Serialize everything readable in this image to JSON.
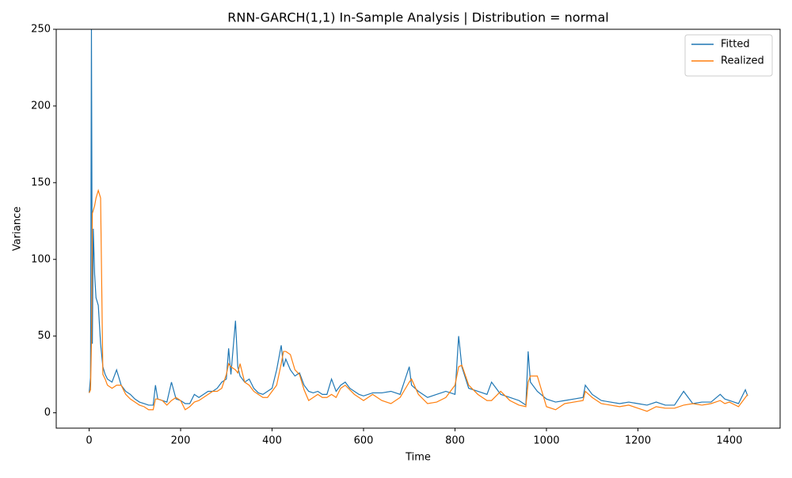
{
  "chart_data": {
    "type": "line",
    "title": "RNN-GARCH(1,1) In-Sample Analysis | Distribution = normal",
    "x_label": "Time",
    "y_label": "Variance",
    "x": [
      0,
      3,
      5,
      7,
      9,
      12,
      15,
      20,
      25,
      30,
      35,
      40,
      50,
      60,
      70,
      80,
      90,
      100,
      110,
      120,
      130,
      140,
      145,
      150,
      160,
      170,
      180,
      190,
      200,
      210,
      220,
      230,
      240,
      250,
      260,
      270,
      280,
      290,
      300,
      305,
      310,
      320,
      325,
      330,
      340,
      350,
      360,
      370,
      380,
      390,
      400,
      410,
      420,
      425,
      430,
      440,
      450,
      460,
      470,
      480,
      490,
      500,
      510,
      520,
      530,
      540,
      550,
      560,
      570,
      580,
      590,
      600,
      620,
      640,
      660,
      680,
      700,
      705,
      720,
      740,
      760,
      780,
      800,
      808,
      815,
      830,
      850,
      870,
      880,
      900,
      920,
      940,
      955,
      960,
      965,
      980,
      1000,
      1020,
      1040,
      1060,
      1080,
      1085,
      1100,
      1120,
      1140,
      1160,
      1180,
      1200,
      1220,
      1240,
      1260,
      1280,
      1300,
      1320,
      1340,
      1360,
      1380,
      1390,
      1400,
      1420,
      1435,
      1440
    ],
    "series": [
      {
        "name": "Fitted",
        "color": "#1f77b4",
        "values": [
          13,
          23,
          250,
          45,
          120,
          90,
          75,
          70,
          45,
          30,
          25,
          22,
          20,
          28,
          18,
          14,
          12,
          9,
          7,
          6,
          5,
          5,
          18,
          9,
          8,
          7,
          20,
          9,
          8,
          6,
          6,
          12,
          10,
          12,
          14,
          14,
          16,
          20,
          22,
          42,
          25,
          60,
          30,
          24,
          20,
          22,
          16,
          13,
          12,
          14,
          16,
          28,
          44,
          30,
          35,
          28,
          24,
          26,
          18,
          14,
          13,
          14,
          12,
          12,
          22,
          14,
          18,
          20,
          16,
          14,
          12,
          11,
          13,
          13,
          14,
          12,
          30,
          18,
          14,
          10,
          12,
          14,
          12,
          50,
          30,
          16,
          14,
          12,
          20,
          12,
          10,
          8,
          5,
          40,
          20,
          14,
          9,
          7,
          8,
          9,
          10,
          18,
          12,
          8,
          7,
          6,
          7,
          6,
          5,
          7,
          5,
          5,
          14,
          6,
          7,
          7,
          12,
          9,
          8,
          6,
          15,
          11
        ]
      },
      {
        "name": "Realized",
        "color": "#ff7f0e",
        "values": [
          13,
          15,
          45,
          130,
          132,
          135,
          140,
          145,
          140,
          25,
          22,
          18,
          16,
          18,
          18,
          12,
          9,
          7,
          5,
          4,
          2,
          2,
          9,
          9,
          8,
          5,
          8,
          10,
          8,
          2,
          4,
          7,
          8,
          10,
          12,
          14,
          14,
          16,
          25,
          32,
          30,
          28,
          26,
          32,
          20,
          18,
          14,
          12,
          10,
          10,
          14,
          18,
          32,
          40,
          40,
          38,
          28,
          25,
          15,
          8,
          10,
          12,
          10,
          10,
          12,
          10,
          16,
          18,
          15,
          12,
          10,
          8,
          12,
          8,
          6,
          10,
          20,
          22,
          12,
          6,
          7,
          10,
          18,
          30,
          31,
          18,
          12,
          8,
          8,
          14,
          8,
          5,
          4,
          20,
          24,
          24,
          4,
          2,
          6,
          7,
          8,
          14,
          10,
          6,
          5,
          4,
          5,
          3,
          1,
          4,
          3,
          3,
          5,
          6,
          5,
          6,
          8,
          6,
          7,
          4,
          10,
          12
        ]
      }
    ],
    "xlim": [
      -72,
      1511
    ],
    "ylim": [
      -10,
      250
    ],
    "xticks": [
      0,
      200,
      400,
      600,
      800,
      1000,
      1200,
      1400
    ],
    "yticks": [
      0,
      50,
      100,
      150,
      200,
      250
    ],
    "legend": "upper right"
  }
}
